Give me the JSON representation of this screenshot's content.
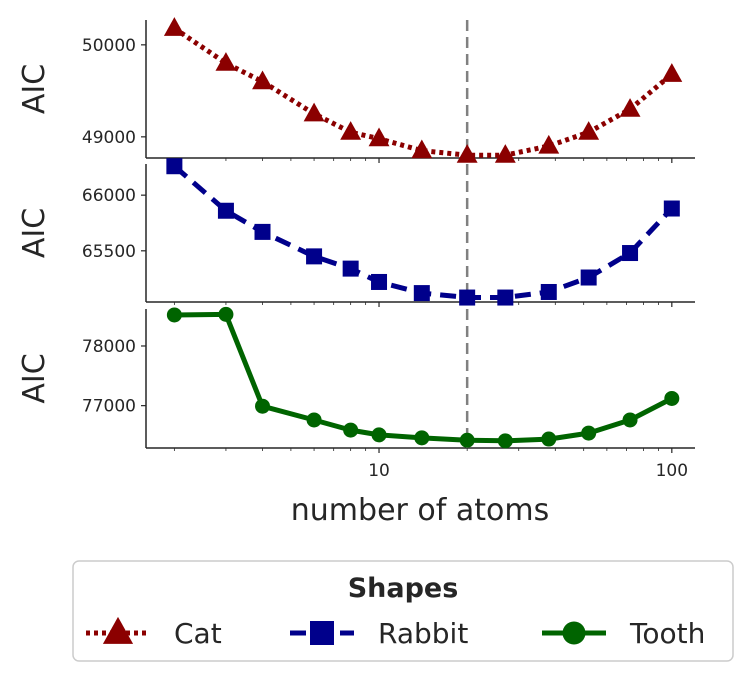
{
  "chart_data": {
    "type": "line",
    "x": [
      2,
      3,
      4,
      6,
      8,
      10,
      14,
      20,
      27,
      38,
      52,
      72,
      100
    ],
    "xlabel": "number of atoms",
    "xscale": "log",
    "xlim": [
      1.6,
      120
    ],
    "xticks": [
      10,
      100
    ],
    "xtick_labels": [
      "10",
      "100"
    ],
    "reference_line": {
      "x": 20,
      "style": "dashed",
      "color": "#808080"
    },
    "panels": [
      {
        "ylabel": "AIC",
        "ylim": [
          48770,
          50270
        ],
        "yticks": [
          49000,
          50000
        ],
        "ytick_labels": [
          "49000",
          "50000"
        ],
        "series": [
          {
            "name": "Cat",
            "color": "#8b0000",
            "linestyle": "dotted",
            "marker": "triangle",
            "values": [
              50180,
              49800,
              49600,
              49250,
              49050,
              48980,
              48850,
              48800,
              48800,
              48900,
              49050,
              49300,
              49680
            ]
          }
        ]
      },
      {
        "ylabel": "AIC",
        "ylim": [
          65040,
          66280
        ],
        "yticks": [
          65500,
          66000
        ],
        "ytick_labels": [
          "65500",
          "66000"
        ],
        "series": [
          {
            "name": "Rabbit",
            "color": "#00008b",
            "linestyle": "dashed",
            "marker": "square",
            "values": [
              66260,
              65860,
              65670,
              65450,
              65340,
              65220,
              65120,
              65080,
              65080,
              65130,
              65260,
              65480,
              65880
            ]
          }
        ]
      },
      {
        "ylabel": "AIC",
        "ylim": [
          76290,
          78620
        ],
        "yticks": [
          77000,
          78000
        ],
        "ytick_labels": [
          "77000",
          "78000"
        ],
        "series": [
          {
            "name": "Tooth",
            "color": "#006400",
            "linestyle": "solid",
            "marker": "circle",
            "values": [
              78520,
              78530,
              76990,
              76760,
              76590,
              76510,
              76460,
              76420,
              76410,
              76440,
              76540,
              76760,
              77120
            ]
          }
        ]
      }
    ],
    "legend": {
      "title": "Shapes",
      "position": "bottom",
      "entries": [
        "Cat",
        "Rabbit",
        "Tooth"
      ]
    },
    "grid": false
  }
}
